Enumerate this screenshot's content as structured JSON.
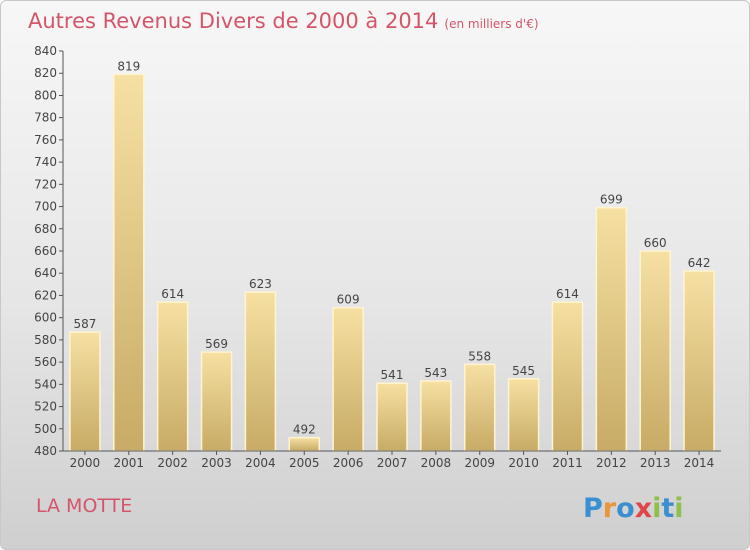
{
  "header": {
    "title": "Autres Revenus Divers de 2000 à 2014",
    "unit": "(en milliers d'€)"
  },
  "footer": {
    "town": "LA MOTTE",
    "logo_text": "Proxiti"
  },
  "colors": {
    "title": "#d4556a",
    "bar_light": "#f6e0a2",
    "bar_dark": "#c7ab66",
    "logo_p": "#3a8fd1",
    "logo_r": "#e9953a",
    "logo_o": "#3a8fd1",
    "logo_x": "#e0454a",
    "logo_i": "#8fc04a",
    "logo_t": "#3a8fd1"
  },
  "chart_data": {
    "type": "bar",
    "title": "Autres Revenus Divers de 2000 à 2014",
    "categories": [
      "2000",
      "2001",
      "2002",
      "2003",
      "2004",
      "2005",
      "2006",
      "2007",
      "2008",
      "2009",
      "2010",
      "2011",
      "2012",
      "2013",
      "2014"
    ],
    "values": [
      587,
      819,
      614,
      569,
      623,
      492,
      609,
      541,
      543,
      558,
      545,
      614,
      699,
      660,
      642
    ],
    "ylim": [
      480,
      840
    ],
    "yticks": [
      480,
      500,
      520,
      540,
      560,
      580,
      600,
      620,
      640,
      660,
      680,
      700,
      720,
      740,
      760,
      780,
      800,
      820,
      840
    ],
    "grid": false,
    "xlabel": "",
    "ylabel": ""
  }
}
